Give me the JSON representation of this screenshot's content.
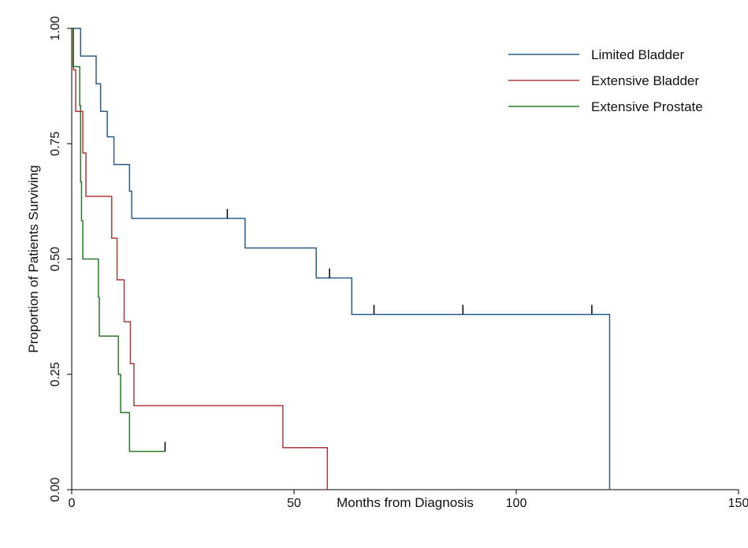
{
  "chart_data": {
    "type": "line",
    "title": "",
    "xlabel": "Months from Diagnosis",
    "ylabel": "Proportion of Patients Surviving",
    "xlim": [
      0,
      150
    ],
    "ylim": [
      0,
      1
    ],
    "xticks": [
      0,
      50,
      100,
      150
    ],
    "xtick_labels": [
      "0",
      "50",
      "100",
      "150"
    ],
    "yticks": [
      0,
      0.25,
      0.5,
      0.75,
      1
    ],
    "ytick_labels": [
      "0.00",
      "0.25",
      "0.50",
      "0.75",
      "1.00"
    ],
    "grid": false,
    "legend_position": "top-right",
    "step": true,
    "series": [
      {
        "name": "Limited Bladder",
        "color": "#2b5d8c",
        "x": [
          0,
          2,
          2,
          5.5,
          5.5,
          6.5,
          6.5,
          8,
          8,
          9.5,
          9.5,
          13,
          13,
          13.5,
          13.5,
          14,
          14,
          39,
          39,
          55,
          55,
          63,
          63,
          121,
          121
        ],
        "y": [
          1.0,
          1.0,
          0.94,
          0.94,
          0.88,
          0.88,
          0.82,
          0.82,
          0.765,
          0.765,
          0.705,
          0.705,
          0.647,
          0.647,
          0.588,
          0.588,
          0.588,
          0.588,
          0.524,
          0.524,
          0.459,
          0.459,
          0.38,
          0.38,
          0.0
        ],
        "censored_x": [
          35,
          58,
          68,
          88,
          117
        ]
      },
      {
        "name": "Extensive Bladder",
        "color": "#b03a3a",
        "x": [
          0,
          0.4,
          0.4,
          0.9,
          0.9,
          2.5,
          2.5,
          3.2,
          3.2,
          9,
          9,
          10.2,
          10.2,
          11.8,
          11.8,
          13.2,
          13.2,
          14,
          14,
          47.5,
          47.5,
          57.5,
          57.5
        ],
        "y": [
          1.0,
          1.0,
          0.91,
          0.91,
          0.82,
          0.82,
          0.73,
          0.73,
          0.636,
          0.636,
          0.545,
          0.545,
          0.455,
          0.455,
          0.364,
          0.364,
          0.273,
          0.273,
          0.182,
          0.182,
          0.091,
          0.091,
          0.0
        ],
        "censored_x": []
      },
      {
        "name": "Extensive Prostate",
        "color": "#2a7a2a",
        "x": [
          0,
          0.3,
          0.3,
          1.8,
          1.8,
          2,
          2,
          2.2,
          2.2,
          2.5,
          2.5,
          2.8,
          2.8,
          6,
          6,
          6.2,
          6.2,
          10.5,
          10.5,
          11,
          11,
          13,
          13,
          21
        ],
        "y": [
          1.0,
          1.0,
          0.917,
          0.917,
          0.833,
          0.833,
          0.667,
          0.667,
          0.583,
          0.583,
          0.5,
          0.5,
          0.5,
          0.5,
          0.417,
          0.417,
          0.333,
          0.333,
          0.25,
          0.25,
          0.167,
          0.167,
          0.083,
          0.083
        ],
        "censored_x": [
          21
        ]
      }
    ]
  }
}
